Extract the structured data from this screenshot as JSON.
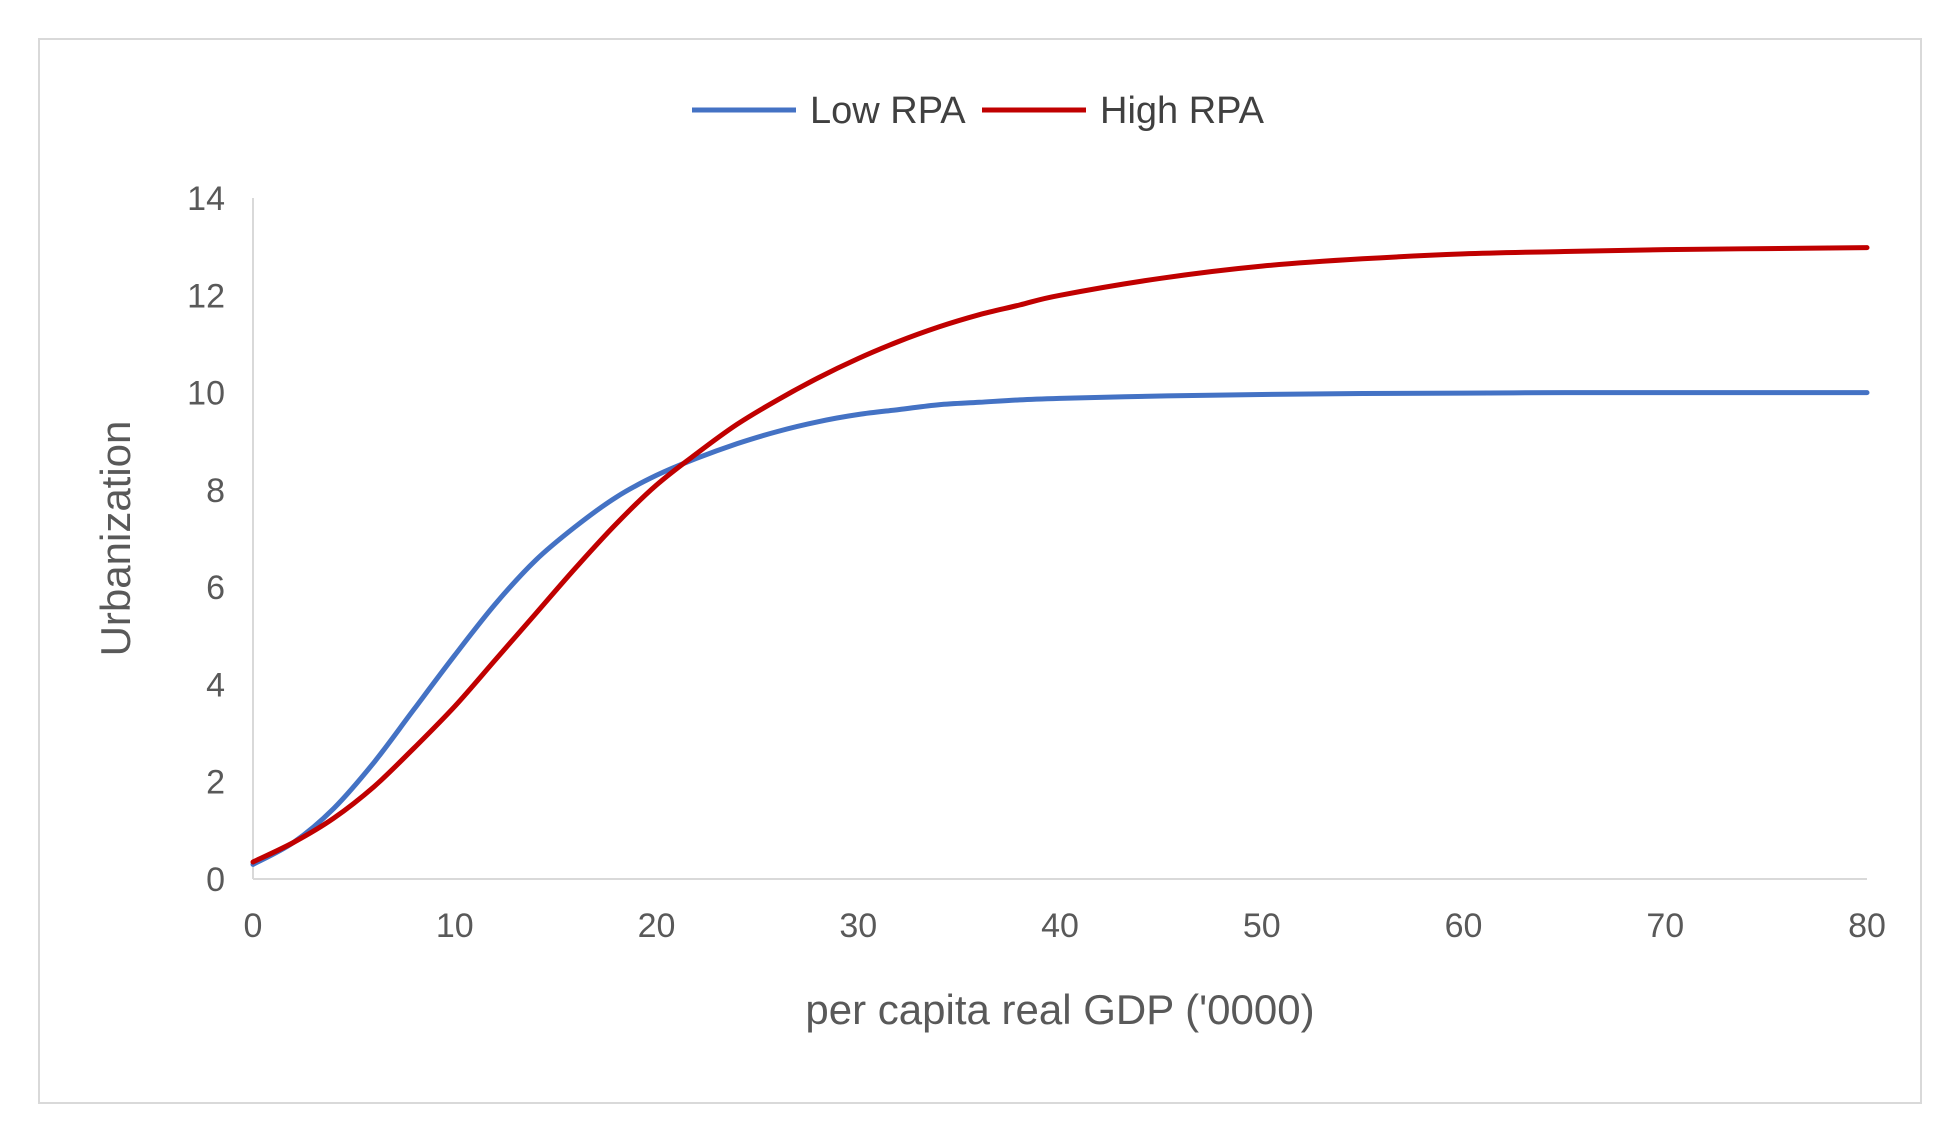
{
  "chart_data": {
    "type": "line",
    "title": "",
    "xlabel": "per capita real GDP ('0000)",
    "ylabel": "Urbanization",
    "xlim": [
      0,
      80
    ],
    "ylim": [
      0,
      14
    ],
    "xticks": [
      "0",
      "10",
      "20",
      "30",
      "40",
      "50",
      "60",
      "70",
      "80"
    ],
    "yticks": [
      "0",
      "2",
      "4",
      "6",
      "8",
      "10",
      "12",
      "14"
    ],
    "grid": false,
    "legend_position": "top-center",
    "x": [
      0,
      2,
      4,
      6,
      8,
      10,
      12,
      14,
      16,
      18,
      20,
      22,
      24,
      26,
      28,
      30,
      32,
      34,
      36,
      38,
      40,
      45,
      50,
      55,
      60,
      65,
      70,
      75,
      80
    ],
    "series": [
      {
        "name": "Low RPA",
        "color": "#4472C4",
        "values": [
          0.3,
          0.75,
          1.45,
          2.4,
          3.5,
          4.6,
          5.65,
          6.55,
          7.25,
          7.85,
          8.3,
          8.65,
          8.95,
          9.2,
          9.4,
          9.55,
          9.65,
          9.75,
          9.8,
          9.85,
          9.88,
          9.93,
          9.96,
          9.98,
          9.99,
          10.0,
          10.0,
          10.0,
          10.0
        ]
      },
      {
        "name": "High RPA",
        "color": "#C00000",
        "values": [
          0.35,
          0.75,
          1.25,
          1.9,
          2.7,
          3.55,
          4.5,
          5.45,
          6.4,
          7.3,
          8.1,
          8.75,
          9.35,
          9.85,
          10.3,
          10.7,
          11.05,
          11.35,
          11.6,
          11.8,
          12.0,
          12.35,
          12.6,
          12.75,
          12.85,
          12.9,
          12.94,
          12.96,
          12.98
        ]
      }
    ]
  }
}
